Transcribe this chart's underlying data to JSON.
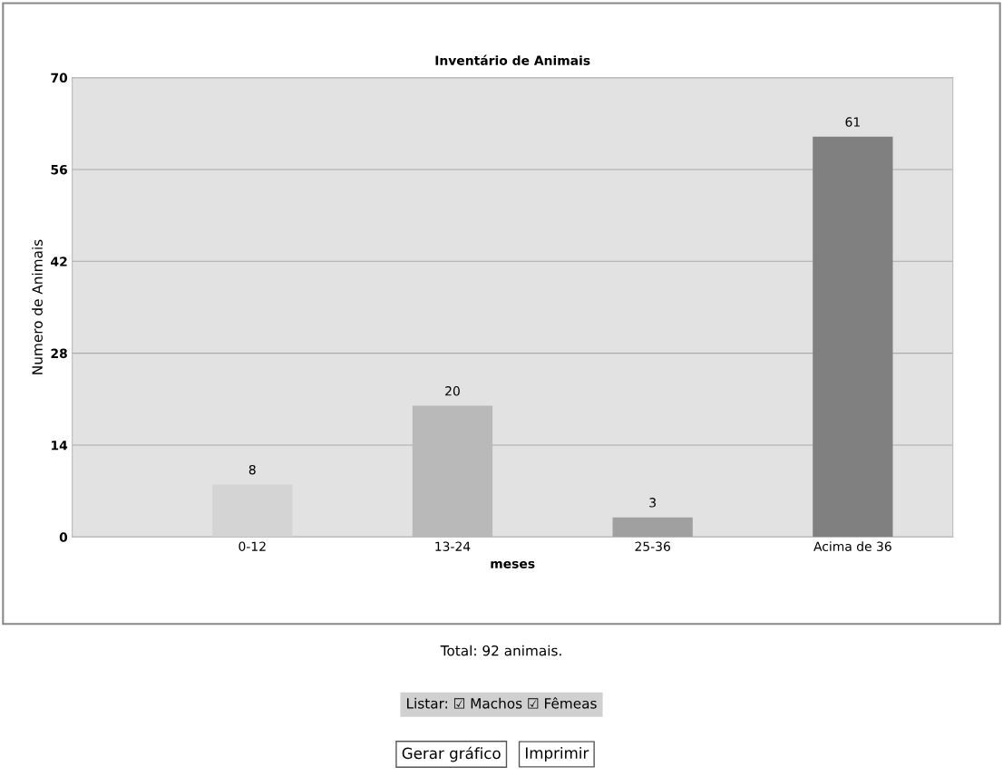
{
  "chart_data": {
    "type": "bar",
    "title": "Inventário de Animais",
    "xlabel": "meses",
    "ylabel": "Numero de Animais",
    "categories": [
      "0-12",
      "13-24",
      "25-36",
      "Acima de 36"
    ],
    "values": [
      8,
      20,
      3,
      61
    ],
    "colors": [
      "#d4d4d4",
      "#b9b9b9",
      "#a0a0a0",
      "#808080"
    ],
    "ylim": [
      0,
      70
    ],
    "yticks": [
      0,
      14,
      28,
      42,
      56,
      70
    ],
    "grid": "y",
    "data_labels": true,
    "annotations": [
      "Total: 92 animais.",
      "Listar: ☑ Machos ☑ Fêmeas",
      "Gerar gráfico",
      "Imprimir"
    ]
  }
}
